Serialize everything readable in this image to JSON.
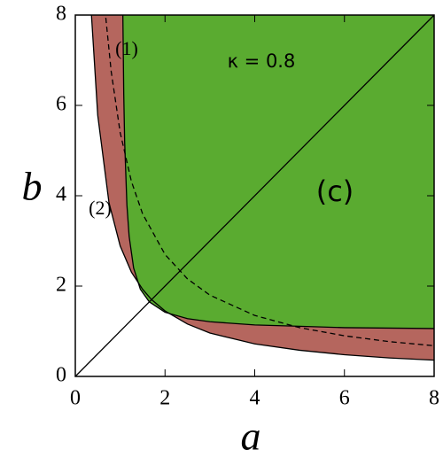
{
  "chart_data": {
    "type": "region",
    "xlabel": "a",
    "ylabel": "b",
    "xlim": [
      0,
      8
    ],
    "ylim": [
      0,
      8
    ],
    "xticks": [
      0,
      2,
      4,
      6,
      8
    ],
    "yticks": [
      0,
      2,
      4,
      6,
      8
    ],
    "grid": false,
    "annotations": [
      "(1)",
      "(2)",
      "κ = 0.8",
      "(c)"
    ],
    "series": [
      {
        "color": "#b5665e",
        "fill": "above",
        "dashed": false,
        "x": [
          0.36,
          0.5,
          0.75,
          1,
          1.25,
          1.5,
          1.7,
          2,
          2.5,
          3,
          4,
          5,
          6,
          7,
          8
        ],
        "values": [
          8,
          5.78,
          3.85,
          2.89,
          2.31,
          1.93,
          1.7,
          1.45,
          1.16,
          0.96,
          0.72,
          0.58,
          0.48,
          0.41,
          0.36
        ]
      },
      {
        "color": "#5aab30",
        "fill": "above",
        "dashed": false,
        "x": [
          1.06,
          1.08,
          1.1,
          1.15,
          1.2,
          1.3,
          1.45,
          1.65,
          2,
          2.5,
          3,
          4,
          5,
          6,
          8
        ],
        "values": [
          8,
          6.25,
          5.2,
          3.8,
          3.1,
          2.4,
          1.93,
          1.65,
          1.42,
          1.28,
          1.21,
          1.14,
          1.11,
          1.08,
          1.06
        ]
      },
      {
        "color": "#000000",
        "fill": "none",
        "dashed": true,
        "x": [
          0.68,
          0.8,
          1,
          1.25,
          1.5,
          2,
          2.5,
          3,
          4,
          5,
          6,
          7,
          8
        ],
        "values": [
          7.94,
          6.75,
          5.4,
          4.32,
          3.6,
          2.7,
          2.16,
          1.8,
          1.35,
          1.08,
          0.9,
          0.77,
          0.68
        ]
      },
      {
        "color": "#000000",
        "fill": "none",
        "dashed": false,
        "x": [
          0,
          8
        ],
        "values": [
          0,
          8
        ]
      }
    ]
  }
}
